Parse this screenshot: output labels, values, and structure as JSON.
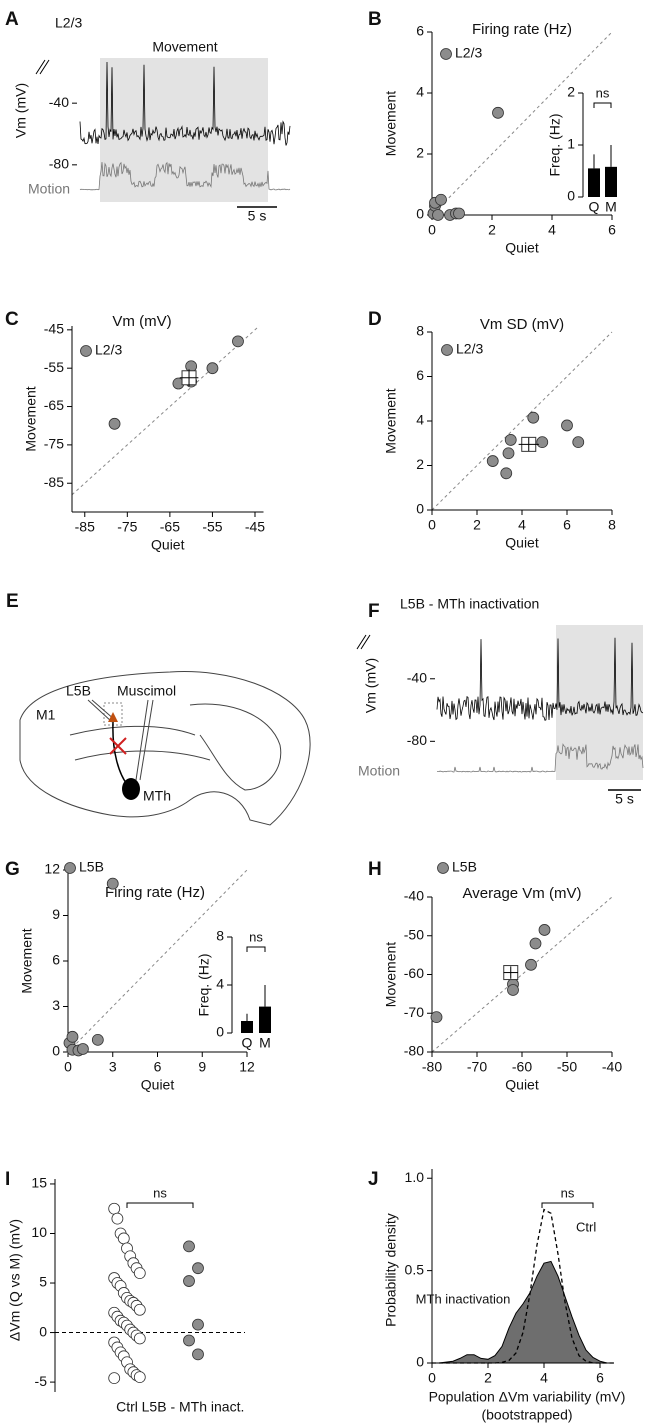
{
  "chart_data": [
    {
      "type": "trace",
      "panel": "A",
      "label": "L2/3",
      "annotation": "Movement",
      "ylabel": "Vm (mV)",
      "ylim": [
        -84,
        -12
      ],
      "yticks": [
        -40,
        -80
      ],
      "motion_label": "Motion",
      "scalebar": "5 s"
    },
    {
      "type": "scatter",
      "panel": "B",
      "title": "Firing rate (Hz)",
      "xlabel": "Quiet",
      "ylabel": "Movement",
      "xlim": [
        0,
        6
      ],
      "ylim": [
        0,
        6
      ],
      "xticks": [
        0,
        2,
        4,
        6
      ],
      "yticks": [
        0,
        2,
        4,
        6
      ],
      "legend": "upper left",
      "series": [
        {
          "name": "L2/3",
          "color": "#8c8c8c",
          "x": [
            0.05,
            0.1,
            0.1,
            0.3,
            0.2,
            0.6,
            0.8,
            0.9,
            2.2
          ],
          "values": [
            0.05,
            0.3,
            0.4,
            0.5,
            0.0,
            0.0,
            0.05,
            0.05,
            3.35
          ]
        }
      ],
      "inset": {
        "type": "bar",
        "ylabel": "Freq. (Hz)",
        "categories": [
          "Q",
          "M"
        ],
        "values": [
          0.55,
          0.58
        ],
        "errors": [
          0.27,
          0.42
        ],
        "color": "#000000",
        "ylim": [
          0,
          2
        ],
        "yticks": [
          0,
          1,
          2
        ],
        "annotation": "ns"
      }
    },
    {
      "type": "scatter",
      "panel": "C",
      "title": "Vm (mV)",
      "xlabel": "Quiet",
      "ylabel": "Movement",
      "xlim": [
        -88,
        -43
      ],
      "ylim": [
        -92.5,
        -44
      ],
      "xticks": [
        -85,
        -75,
        -65,
        -55,
        -45
      ],
      "yticks": [
        -85,
        -75,
        -65,
        -55,
        -45
      ],
      "legend": "upper left",
      "series": [
        {
          "name": "L2/3",
          "color": "#8c8c8c",
          "x": [
            -78,
            -63,
            -60,
            -60,
            -55,
            -49
          ],
          "values": [
            -69.5,
            -59,
            -54.5,
            -58.5,
            -55,
            -48
          ]
        }
      ],
      "mean": {
        "x": -60.5,
        "y": -57.5,
        "x_err": 2.2,
        "y_err": 2.2
      }
    },
    {
      "type": "scatter",
      "panel": "D",
      "title": "Vm SD (mV)",
      "xlabel": "Quiet",
      "ylabel": "Movement",
      "xlim": [
        0,
        8
      ],
      "ylim": [
        0,
        8
      ],
      "xticks": [
        0,
        2,
        4,
        6,
        8
      ],
      "yticks": [
        0,
        2,
        4,
        6,
        8
      ],
      "legend": "upper left",
      "series": [
        {
          "name": "L2/3",
          "color": "#8c8c8c",
          "x": [
            2.7,
            3.3,
            3.4,
            3.5,
            4.5,
            4.9,
            6.0,
            6.5
          ],
          "values": [
            2.2,
            1.65,
            2.55,
            3.15,
            4.15,
            3.05,
            3.8,
            3.05
          ]
        }
      ],
      "mean": {
        "x": 4.3,
        "y": 2.95,
        "x_err": 0.45,
        "y_err": 0.3
      }
    },
    {
      "type": "trace",
      "panel": "F",
      "title": "L5B - MTh inactivation",
      "ylabel": "Vm (mV)",
      "ylim": [
        -83,
        -12
      ],
      "yticks": [
        -40,
        -80
      ],
      "motion_label": "Motion",
      "scalebar": "5 s"
    },
    {
      "type": "scatter",
      "panel": "G",
      "title": "Firing rate (Hz)",
      "xlabel": "Quiet",
      "ylabel": "Movement",
      "xlim": [
        0,
        12
      ],
      "ylim": [
        0,
        12
      ],
      "xticks": [
        0,
        3,
        6,
        9,
        12
      ],
      "yticks": [
        0,
        3,
        6,
        9,
        12
      ],
      "legend": "upper left",
      "series": [
        {
          "name": "L5B",
          "color": "#8c8c8c",
          "x": [
            0.1,
            0.3,
            0.3,
            0.7,
            1.0,
            2.0,
            3.0
          ],
          "values": [
            0.6,
            1.0,
            0.15,
            0.1,
            0.2,
            0.8,
            11.1
          ]
        }
      ],
      "inset": {
        "type": "bar",
        "ylabel": "Freq. (Hz)",
        "categories": [
          "Q",
          "M"
        ],
        "values": [
          1.0,
          2.2
        ],
        "errors": [
          0.6,
          1.8
        ],
        "color": "#000000",
        "ylim": [
          0,
          8
        ],
        "yticks": [
          0,
          4,
          8
        ],
        "annotation": "ns"
      }
    },
    {
      "type": "scatter",
      "panel": "H",
      "title": "Average Vm (mV)",
      "xlabel": "Quiet",
      "ylabel": "Movement",
      "xlim": [
        -80,
        -40
      ],
      "ylim": [
        -80,
        -40
      ],
      "xticks": [
        -80,
        -70,
        -60,
        -50,
        -40
      ],
      "yticks": [
        -80,
        -70,
        -60,
        -50,
        -40
      ],
      "legend": "upper left",
      "series": [
        {
          "name": "L5B",
          "color": "#8c8c8c",
          "x": [
            -79,
            -62,
            -62,
            -58,
            -57,
            -55
          ],
          "values": [
            -71,
            -62.5,
            -64,
            -57.5,
            -52,
            -48.5
          ]
        }
      ],
      "mean": {
        "x": -62.5,
        "y": -59.5,
        "x_err": 1.6,
        "y_err": 1.6
      }
    },
    {
      "type": "strip",
      "panel": "I",
      "ylabel": "ΔVm (Q vs M) (mV)",
      "ylim": [
        -6,
        15.5
      ],
      "yticks": [
        -5,
        0,
        5,
        10,
        15
      ],
      "categories": [
        "Ctrl",
        "L5B - MTh inact."
      ],
      "annotation": "ns",
      "groups": [
        {
          "color": "#ffffff",
          "values": [
            12.5,
            11.5,
            10,
            9.5,
            8.5,
            7.7,
            7,
            6.5,
            6,
            5.5,
            5,
            4.7,
            4,
            3.5,
            3.2,
            3,
            2.7,
            2.3,
            2,
            1.6,
            1.2,
            1,
            0.7,
            0.3,
            0,
            -0.3,
            -0.6,
            -1,
            -1.5,
            -2,
            -2.4,
            -3,
            -3.7,
            -4,
            -4.3,
            -4.5,
            -4.6
          ]
        },
        {
          "color": "#8c8c8c",
          "values": [
            8.7,
            6.5,
            5.2,
            0.8,
            -0.8,
            -2.2
          ]
        }
      ]
    },
    {
      "type": "density",
      "panel": "J",
      "xlabel": "Population ΔVm variability (mV)",
      "xlabel_note": "(bootstrapped)",
      "ylabel": "Probability density",
      "xlim": [
        0,
        6.5
      ],
      "ylim": [
        0,
        1.05
      ],
      "xticks": [
        0,
        2,
        4,
        6
      ],
      "yticks": [
        0,
        0.5,
        {
          "value": 1,
          "label": "1.0"
        }
      ],
      "annotation": "ns",
      "x": [
        0,
        0.25,
        0.5,
        0.75,
        1,
        1.25,
        1.5,
        1.75,
        2,
        2.25,
        2.5,
        2.75,
        3,
        3.25,
        3.5,
        3.75,
        4,
        4.25,
        4.5,
        4.75,
        5,
        5.25,
        5.5,
        5.75,
        6,
        6.25,
        6.5
      ],
      "series": [
        {
          "name": "MTh inactivation",
          "color": "#6e6e6e",
          "fill": true,
          "values": [
            0,
            0,
            0.005,
            0.01,
            0.025,
            0.045,
            0.045,
            0.025,
            0.02,
            0.04,
            0.09,
            0.19,
            0.27,
            0.32,
            0.38,
            0.47,
            0.54,
            0.55,
            0.47,
            0.36,
            0.25,
            0.15,
            0.07,
            0.03,
            0.01,
            0,
            0
          ]
        },
        {
          "name": "Ctrl",
          "color": "#000000",
          "dashed": true,
          "values": [
            0,
            0,
            0,
            0,
            0,
            0,
            0,
            0,
            0,
            0,
            0.003,
            0.014,
            0.054,
            0.165,
            0.375,
            0.64,
            0.83,
            0.81,
            0.59,
            0.33,
            0.135,
            0.04,
            0.01,
            0,
            0,
            0,
            0
          ]
        }
      ]
    }
  ],
  "diagram": {
    "panel": "E",
    "probe": "L5B",
    "drug": "Muscimol",
    "area": "M1",
    "target": "MTh"
  }
}
